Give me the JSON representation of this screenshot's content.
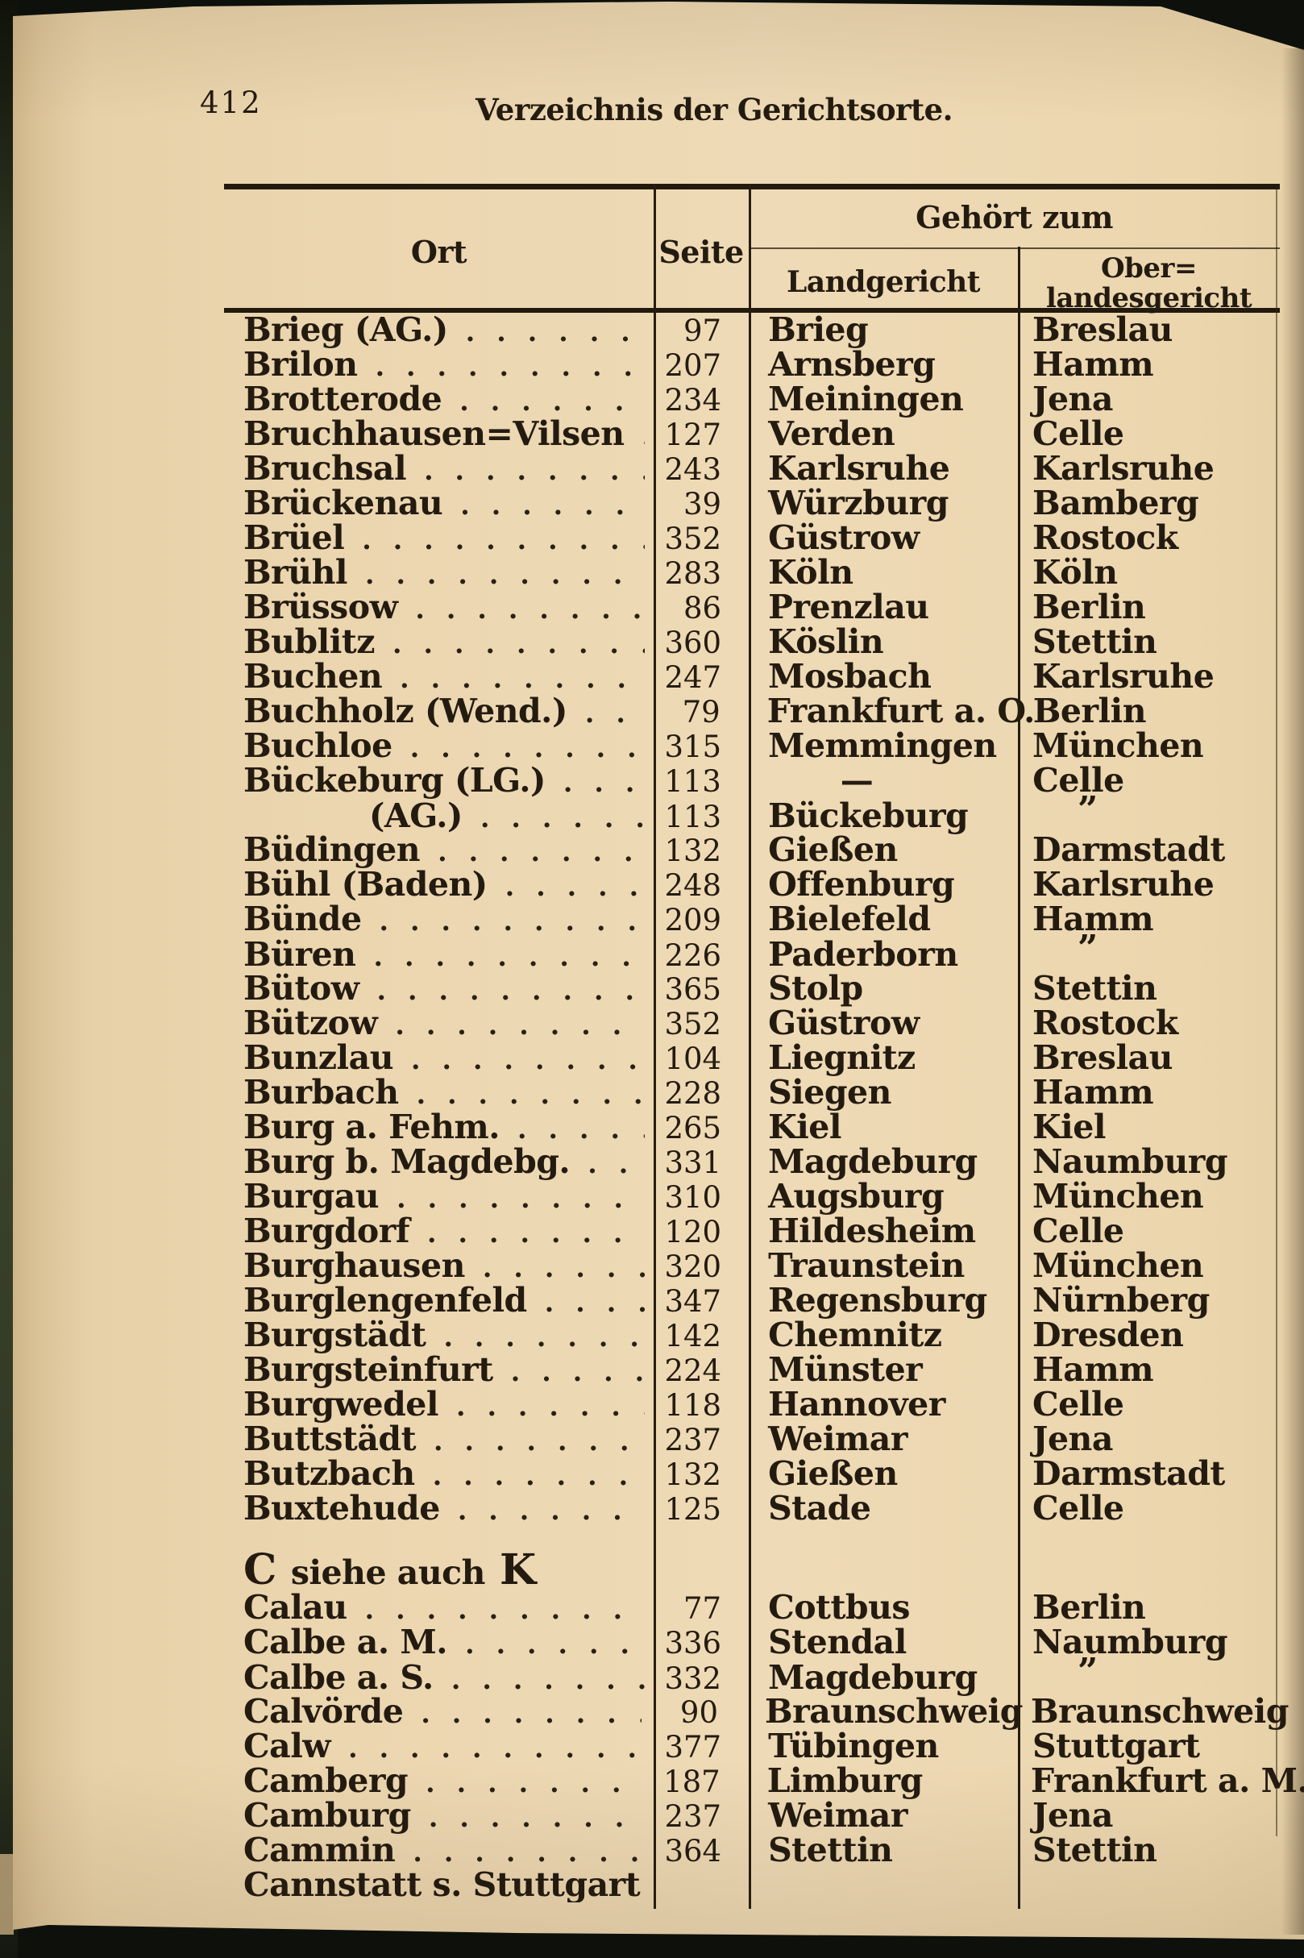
{
  "colors": {
    "paper": "#ebd6b0",
    "ink": "#241b10",
    "scan_background": "#0e100b",
    "page_edge_olive": "#3a432b"
  },
  "page": {
    "number": "412",
    "running_title": "Verzeichnis der Gerichtsorte."
  },
  "table": {
    "headers": {
      "ort": "Ort",
      "seite": "Seite",
      "gehoert_zum": "Gehört zum",
      "landgericht": "Landgericht",
      "oberlandesgericht_line1": "Ober=",
      "oberlandesgericht_line2": "landesgericht"
    },
    "rows": [
      {
        "ort": "Brieg (AG.)",
        "seite": "97",
        "lg": "Brieg",
        "olg": "Breslau"
      },
      {
        "ort": "Brilon",
        "seite": "207",
        "lg": "Arnsberg",
        "olg": "Hamm"
      },
      {
        "ort": "Brotterode",
        "seite": "234",
        "lg": "Meiningen",
        "olg": "Jena"
      },
      {
        "ort": "Bruchhausen=Vilsen",
        "seite": "127",
        "lg": "Verden",
        "olg": "Celle"
      },
      {
        "ort": "Bruchsal",
        "seite": "243",
        "lg": "Karlsruhe",
        "olg": "Karlsruhe"
      },
      {
        "ort": "Brückenau",
        "seite": "39",
        "lg": "Würzburg",
        "olg": "Bamberg"
      },
      {
        "ort": "Brüel",
        "seite": "352",
        "lg": "Güstrow",
        "olg": "Rostock"
      },
      {
        "ort": "Brühl",
        "seite": "283",
        "lg": "Köln",
        "olg": "Köln"
      },
      {
        "ort": "Brüssow",
        "seite": "86",
        "lg": "Prenzlau",
        "olg": "Berlin"
      },
      {
        "ort": "Bublitz",
        "seite": "360",
        "lg": "Köslin",
        "olg": "Stettin"
      },
      {
        "ort": "Buchen",
        "seite": "247",
        "lg": "Mosbach",
        "olg": "Karlsruhe"
      },
      {
        "ort": "Buchholz (Wend.)",
        "seite": "79",
        "lg": "Frankfurt a. O.",
        "olg": "Berlin"
      },
      {
        "ort": "Buchloe",
        "seite": "315",
        "lg": "Memmingen",
        "olg": "München"
      },
      {
        "ort": "Bückeburg (LG.)",
        "seite": "113",
        "lg": "—",
        "olg": "Celle"
      },
      {
        "ort": "(AG.)",
        "seite": "113",
        "lg": "Bückeburg",
        "olg": "”",
        "indent": true
      },
      {
        "ort": "Büdingen",
        "seite": "132",
        "lg": "Gießen",
        "olg": "Darmstadt"
      },
      {
        "ort": "Bühl (Baden)",
        "seite": "248",
        "lg": "Offenburg",
        "olg": "Karlsruhe"
      },
      {
        "ort": "Bünde",
        "seite": "209",
        "lg": "Bielefeld",
        "olg": "Hamm"
      },
      {
        "ort": "Büren",
        "seite": "226",
        "lg": "Paderborn",
        "olg": "”"
      },
      {
        "ort": "Bütow",
        "seite": "365",
        "lg": "Stolp",
        "olg": "Stettin"
      },
      {
        "ort": "Bützow",
        "seite": "352",
        "lg": "Güstrow",
        "olg": "Rostock"
      },
      {
        "ort": "Bunzlau",
        "seite": "104",
        "lg": "Liegnitz",
        "olg": "Breslau"
      },
      {
        "ort": "Burbach",
        "seite": "228",
        "lg": "Siegen",
        "olg": "Hamm"
      },
      {
        "ort": "Burg a. Fehm.",
        "seite": "265",
        "lg": "Kiel",
        "olg": "Kiel"
      },
      {
        "ort": "Burg b. Magdebg.",
        "seite": "331",
        "lg": "Magdeburg",
        "olg": "Naumburg"
      },
      {
        "ort": "Burgau",
        "seite": "310",
        "lg": "Augsburg",
        "olg": "München"
      },
      {
        "ort": "Burgdorf",
        "seite": "120",
        "lg": "Hildesheim",
        "olg": "Celle"
      },
      {
        "ort": "Burghausen",
        "seite": "320",
        "lg": "Traunstein",
        "olg": "München"
      },
      {
        "ort": "Burglengenfeld",
        "seite": "347",
        "lg": "Regensburg",
        "olg": "Nürnberg"
      },
      {
        "ort": "Burgstädt",
        "seite": "142",
        "lg": "Chemnitz",
        "olg": "Dresden"
      },
      {
        "ort": "Burgsteinfurt",
        "seite": "224",
        "lg": "Münster",
        "olg": "Hamm"
      },
      {
        "ort": "Burgwedel",
        "seite": "118",
        "lg": "Hannover",
        "olg": "Celle"
      },
      {
        "ort": "Buttstädt",
        "seite": "237",
        "lg": "Weimar",
        "olg": "Jena"
      },
      {
        "ort": "Butzbach",
        "seite": "132",
        "lg": "Gießen",
        "olg": "Darmstadt"
      },
      {
        "ort": "Buxtehude",
        "seite": "125",
        "lg": "Stade",
        "olg": "Celle"
      },
      {
        "type": "spacer"
      },
      {
        "type": "section",
        "c": "C",
        "mid": "siehe auch",
        "k": "K"
      },
      {
        "ort": "Calau",
        "seite": "77",
        "lg": "Cottbus",
        "olg": "Berlin"
      },
      {
        "ort": "Calbe a. M.",
        "seite": "336",
        "lg": "Stendal",
        "olg": "Naumburg"
      },
      {
        "ort": "Calbe a. S.",
        "seite": "332",
        "lg": "Magdeburg",
        "olg": "”"
      },
      {
        "ort": "Calvörde",
        "seite": "90",
        "lg": "Braunschweig",
        "olg": "Braunschweig"
      },
      {
        "ort": "Calw",
        "seite": "377",
        "lg": "Tübingen",
        "olg": "Stuttgart"
      },
      {
        "ort": "Camberg",
        "seite": "187",
        "lg": "Limburg",
        "olg": "Frankfurt a. M."
      },
      {
        "ort": "Camburg",
        "seite": "237",
        "lg": "Weimar",
        "olg": "Jena"
      },
      {
        "ort": "Cammin",
        "seite": "364",
        "lg": "Stettin",
        "olg": "Stettin"
      },
      {
        "ort": "Cannstatt s. Stuttgart",
        "seite": "",
        "lg": "",
        "olg": "",
        "leader": false
      }
    ]
  }
}
